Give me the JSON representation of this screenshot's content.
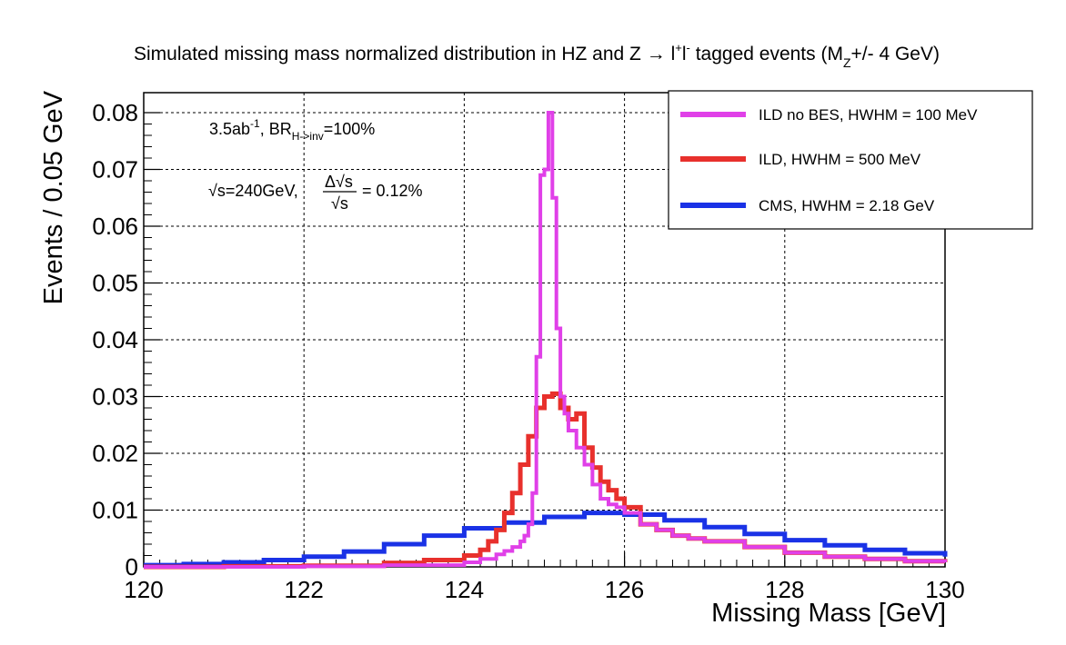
{
  "chart_data": {
    "type": "line",
    "title": {
      "main": "Simulated missing mass normalized distribution in HZ and Z",
      "arrow": "→",
      "l1": "l",
      "l1_sup": "+",
      "l2": "l",
      "l2_sup": "-",
      "after": "tagged events (M",
      "z_sub": "Z",
      "end": "+/- 4 GeV)"
    },
    "xlabel": "Missing Mass [GeV]",
    "ylabel": "Events / 0.05 GeV",
    "xlim": [
      120,
      130
    ],
    "ylim": [
      0,
      0.08
    ],
    "x_ticks": [
      "120",
      "122",
      "124",
      "126",
      "128",
      "130"
    ],
    "x_tick_values": [
      120,
      122,
      124,
      126,
      128,
      130
    ],
    "y_ticks": [
      "0",
      "0.01",
      "0.02",
      "0.03",
      "0.04",
      "0.05",
      "0.06",
      "0.07",
      "0.08"
    ],
    "y_tick_values": [
      0,
      0.01,
      0.02,
      0.03,
      0.04,
      0.05,
      0.06,
      0.07,
      0.08
    ],
    "grid": true,
    "annotations": {
      "lumi": "3.5ab",
      "lumi_sup": "-1",
      "br": ", BR",
      "br_sub": "H->inv",
      "br_val": "=100%",
      "sqrt": "√",
      "s_eq": "s=240GeV,",
      "delta": "Δ",
      "s": "s",
      "frac_val": "= 0.12%"
    },
    "legend_position": "top-right",
    "series": [
      {
        "name": "ILD no BES, HWHM = 100 MeV",
        "color": "#e040e8",
        "values": [
          [
            120.0,
            0.0
          ],
          [
            121.0,
            0.0
          ],
          [
            122.0,
            0.0001
          ],
          [
            123.0,
            0.0003
          ],
          [
            124.0,
            0.0008
          ],
          [
            124.2,
            0.0014
          ],
          [
            124.4,
            0.0022
          ],
          [
            124.5,
            0.0028
          ],
          [
            124.6,
            0.0035
          ],
          [
            124.7,
            0.0045
          ],
          [
            124.75,
            0.0055
          ],
          [
            124.8,
            0.0075
          ],
          [
            124.85,
            0.013
          ],
          [
            124.9,
            0.037
          ],
          [
            124.95,
            0.069
          ],
          [
            125.0,
            0.07
          ],
          [
            125.05,
            0.08
          ],
          [
            125.1,
            0.065
          ],
          [
            125.15,
            0.042
          ],
          [
            125.2,
            0.03
          ],
          [
            125.25,
            0.027
          ],
          [
            125.3,
            0.024
          ],
          [
            125.4,
            0.021
          ],
          [
            125.5,
            0.018
          ],
          [
            125.6,
            0.0145
          ],
          [
            125.7,
            0.012
          ],
          [
            125.8,
            0.011
          ],
          [
            125.9,
            0.0105
          ],
          [
            126.0,
            0.0095
          ],
          [
            126.2,
            0.0075
          ],
          [
            126.4,
            0.0065
          ],
          [
            126.6,
            0.0055
          ],
          [
            126.8,
            0.005
          ],
          [
            127.0,
            0.0045
          ],
          [
            127.5,
            0.0035
          ],
          [
            128.0,
            0.0025
          ],
          [
            128.5,
            0.0018
          ],
          [
            129.0,
            0.0014
          ],
          [
            129.5,
            0.001
          ],
          [
            130.0,
            0.0008
          ]
        ]
      },
      {
        "name": "ILD, HWHM = 500 MeV",
        "color": "#e8302c",
        "values": [
          [
            120.0,
            0.0
          ],
          [
            121.0,
            0.0001
          ],
          [
            122.0,
            0.0002
          ],
          [
            123.0,
            0.0007
          ],
          [
            123.5,
            0.0012
          ],
          [
            124.0,
            0.002
          ],
          [
            124.2,
            0.003
          ],
          [
            124.3,
            0.0045
          ],
          [
            124.4,
            0.0065
          ],
          [
            124.5,
            0.0095
          ],
          [
            124.6,
            0.013
          ],
          [
            124.7,
            0.018
          ],
          [
            124.8,
            0.023
          ],
          [
            124.9,
            0.028
          ],
          [
            125.0,
            0.03
          ],
          [
            125.1,
            0.0305
          ],
          [
            125.2,
            0.028
          ],
          [
            125.3,
            0.026
          ],
          [
            125.4,
            0.027
          ],
          [
            125.5,
            0.021
          ],
          [
            125.6,
            0.0175
          ],
          [
            125.7,
            0.015
          ],
          [
            125.8,
            0.0135
          ],
          [
            125.9,
            0.012
          ],
          [
            126.0,
            0.0105
          ],
          [
            126.2,
            0.0075
          ],
          [
            126.4,
            0.0065
          ],
          [
            126.6,
            0.0055
          ],
          [
            126.8,
            0.005
          ],
          [
            127.0,
            0.0045
          ],
          [
            127.5,
            0.0035
          ],
          [
            128.0,
            0.0025
          ],
          [
            128.5,
            0.0018
          ],
          [
            129.0,
            0.0014
          ],
          [
            129.5,
            0.001
          ],
          [
            130.0,
            0.0008
          ]
        ]
      },
      {
        "name": "CMS, HWHM = 2.18 GeV",
        "color": "#1a32e6",
        "values": [
          [
            120.0,
            0.0003
          ],
          [
            120.5,
            0.0005
          ],
          [
            121.0,
            0.0008
          ],
          [
            121.5,
            0.0012
          ],
          [
            122.0,
            0.0018
          ],
          [
            122.5,
            0.0027
          ],
          [
            123.0,
            0.004
          ],
          [
            123.5,
            0.0055
          ],
          [
            124.0,
            0.0068
          ],
          [
            124.5,
            0.0078
          ],
          [
            125.0,
            0.0088
          ],
          [
            125.5,
            0.0095
          ],
          [
            126.0,
            0.0092
          ],
          [
            126.5,
            0.0082
          ],
          [
            127.0,
            0.007
          ],
          [
            127.5,
            0.0058
          ],
          [
            128.0,
            0.0047
          ],
          [
            128.5,
            0.0038
          ],
          [
            129.0,
            0.003
          ],
          [
            129.5,
            0.0024
          ],
          [
            130.0,
            0.0018
          ]
        ]
      }
    ]
  }
}
